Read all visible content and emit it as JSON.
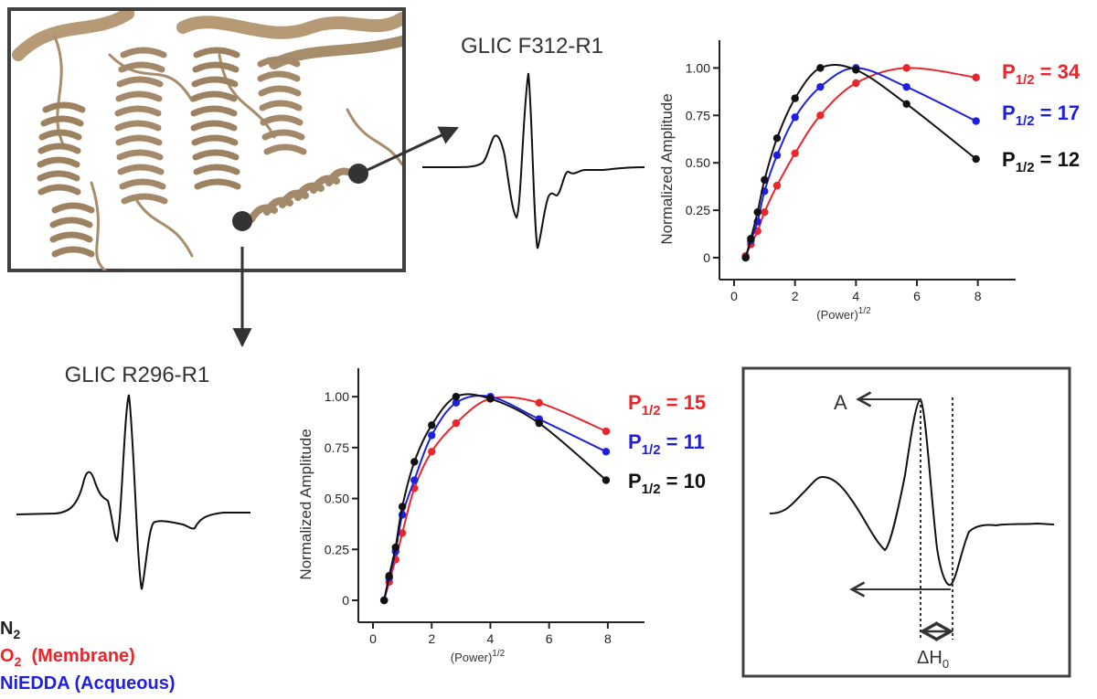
{
  "titles": {
    "f312": "GLIC F312-R1",
    "r296": "GLIC R296-R1"
  },
  "inset": {
    "label_a": "A",
    "label_dh_main": "ΔH",
    "label_dh_sub": "0"
  },
  "legend": {
    "items": [
      {
        "main": "N",
        "sub": "2",
        "suffix": "",
        "color": "#222222"
      },
      {
        "main": "O",
        "sub": "2",
        "suffix": "  (Membrane)",
        "color": "#e8262b"
      },
      {
        "main": "NiEDDA (Acqueous)",
        "sub": "",
        "suffix": "",
        "color": "#1f1fe0"
      }
    ]
  },
  "chart_data": [
    {
      "type": "scatter",
      "id": "top",
      "title": "",
      "xlabel": "(Power)",
      "xlabel_sup": "1/2",
      "ylabel": "Normalized Amplitude",
      "xlim": [
        0,
        9
      ],
      "ylim": [
        0,
        1.05
      ],
      "xticks": [
        0,
        2,
        4,
        6,
        8
      ],
      "yticks": [
        0,
        0.25,
        0.5,
        0.75,
        1.0
      ],
      "ytick_labels": [
        "0",
        "0.25",
        "0.50",
        "0.75",
        "1.00"
      ],
      "x": [
        0.38,
        0.55,
        0.77,
        1.0,
        1.41,
        2.0,
        2.83,
        4.0,
        5.66,
        7.94
      ],
      "series": [
        {
          "name": "O2 (Membrane)",
          "color": "#e8262b",
          "p_half": "34",
          "values": [
            0.01,
            0.07,
            0.14,
            0.24,
            0.38,
            0.55,
            0.75,
            0.92,
            1.0,
            0.95
          ]
        },
        {
          "name": "NiEDDA (Acqueous)",
          "color": "#1f1fe0",
          "p_half": "17",
          "values": [
            0.0,
            0.09,
            0.19,
            0.35,
            0.54,
            0.74,
            0.9,
            1.0,
            0.9,
            0.72
          ]
        },
        {
          "name": "N2",
          "color": "#111111",
          "p_half": "12",
          "values": [
            0.0,
            0.1,
            0.24,
            0.41,
            0.63,
            0.84,
            1.0,
            0.99,
            0.81,
            0.52
          ]
        }
      ],
      "p_label": "P",
      "p_sub": "1/2"
    },
    {
      "type": "scatter",
      "id": "bottom",
      "title": "",
      "xlabel": "(Power)",
      "xlabel_sup": "1/2",
      "ylabel": "Normalized Amplitude",
      "xlim": [
        0,
        9
      ],
      "ylim": [
        0,
        1.05
      ],
      "xticks": [
        0,
        2,
        4,
        6,
        8
      ],
      "yticks": [
        0,
        0.25,
        0.5,
        0.75,
        1.0
      ],
      "ytick_labels": [
        "0",
        "0.25",
        "0.50",
        "0.75",
        "1.00"
      ],
      "x": [
        0.38,
        0.55,
        0.77,
        1.0,
        1.41,
        2.0,
        2.83,
        4.0,
        5.66,
        7.94
      ],
      "series": [
        {
          "name": "O2 (Membrane)",
          "color": "#e8262b",
          "p_half": "15",
          "values": [
            0.0,
            0.09,
            0.2,
            0.33,
            0.55,
            0.73,
            0.87,
            0.99,
            0.97,
            0.83
          ]
        },
        {
          "name": "NiEDDA (Acqueous)",
          "color": "#1f1fe0",
          "p_half": "11",
          "values": [
            0.0,
            0.11,
            0.24,
            0.42,
            0.59,
            0.81,
            0.97,
            1.0,
            0.89,
            0.73
          ]
        },
        {
          "name": "N2",
          "color": "#111111",
          "p_half": "10",
          "values": [
            0.0,
            0.12,
            0.26,
            0.46,
            0.68,
            0.86,
            1.0,
            0.99,
            0.87,
            0.59
          ]
        }
      ],
      "p_label": "P",
      "p_sub": "1/2"
    }
  ]
}
